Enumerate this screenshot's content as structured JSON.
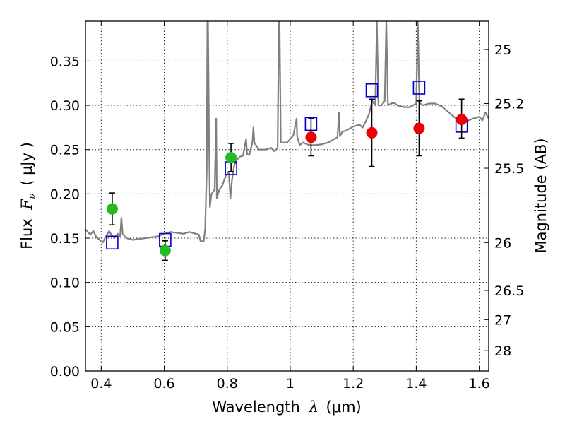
{
  "chart_data": {
    "type": "scatter",
    "xlabel": "Wavelength",
    "xlabel_symbol": "λ",
    "xlabel_unit": "(μm)",
    "ylabel": "Flux",
    "ylabel_symbol": "F",
    "ylabel_subscript": "ν",
    "ylabel_unit": "( μJy )",
    "y2label": "Magnitude (AB)",
    "xlim": [
      0.35,
      1.63
    ],
    "ylim": [
      0.0,
      0.395
    ],
    "grid": true,
    "x_ticks": [
      {
        "value": 0.4,
        "label": "0.4"
      },
      {
        "value": 0.6,
        "label": "0.6"
      },
      {
        "value": 0.8,
        "label": "0.8"
      },
      {
        "value": 1.0,
        "label": "1"
      },
      {
        "value": 1.2,
        "label": "1.2"
      },
      {
        "value": 1.4,
        "label": "1.4"
      },
      {
        "value": 1.6,
        "label": "1.6"
      }
    ],
    "y_ticks": [
      {
        "value": 0.0,
        "label": "0.00"
      },
      {
        "value": 0.05,
        "label": "0.05"
      },
      {
        "value": 0.1,
        "label": "0.10"
      },
      {
        "value": 0.15,
        "label": "0.15"
      },
      {
        "value": 0.2,
        "label": "0.20"
      },
      {
        "value": 0.25,
        "label": "0.25"
      },
      {
        "value": 0.3,
        "label": "0.30"
      },
      {
        "value": 0.35,
        "label": "0.35"
      }
    ],
    "y2_ticks": [
      {
        "label": "25",
        "flux": 0.363
      },
      {
        "label": "25.2",
        "flux": 0.302
      },
      {
        "label": "25.5",
        "flux": 0.229
      },
      {
        "label": "26",
        "flux": 0.145
      },
      {
        "label": "26.5",
        "flux": 0.091
      },
      {
        "label": "27",
        "flux": 0.058
      },
      {
        "label": "28",
        "flux": 0.023
      }
    ],
    "series": [
      {
        "kind": "line",
        "color": "#808080",
        "points": [
          [
            0.35,
            0.16
          ],
          [
            0.365,
            0.154
          ],
          [
            0.375,
            0.158
          ],
          [
            0.385,
            0.151
          ],
          [
            0.395,
            0.148
          ],
          [
            0.405,
            0.145
          ],
          [
            0.415,
            0.152
          ],
          [
            0.425,
            0.158
          ],
          [
            0.432,
            0.154
          ],
          [
            0.442,
            0.15
          ],
          [
            0.452,
            0.155
          ],
          [
            0.46,
            0.152
          ],
          [
            0.464,
            0.173
          ],
          [
            0.468,
            0.155
          ],
          [
            0.48,
            0.15
          ],
          [
            0.5,
            0.148
          ],
          [
            0.52,
            0.149
          ],
          [
            0.54,
            0.15
          ],
          [
            0.56,
            0.151
          ],
          [
            0.58,
            0.152
          ],
          [
            0.6,
            0.155
          ],
          [
            0.62,
            0.157
          ],
          [
            0.64,
            0.156
          ],
          [
            0.66,
            0.155
          ],
          [
            0.68,
            0.157
          ],
          [
            0.7,
            0.155
          ],
          [
            0.71,
            0.154
          ],
          [
            0.715,
            0.147
          ],
          [
            0.725,
            0.146
          ],
          [
            0.73,
            0.16
          ],
          [
            0.735,
            0.225
          ],
          [
            0.737,
            0.395
          ],
          [
            0.739,
            0.395
          ],
          [
            0.742,
            0.27
          ],
          [
            0.745,
            0.185
          ],
          [
            0.75,
            0.2
          ],
          [
            0.76,
            0.205
          ],
          [
            0.765,
            0.285
          ],
          [
            0.767,
            0.195
          ],
          [
            0.775,
            0.205
          ],
          [
            0.785,
            0.21
          ],
          [
            0.795,
            0.22
          ],
          [
            0.805,
            0.225
          ],
          [
            0.81,
            0.195
          ],
          [
            0.815,
            0.215
          ],
          [
            0.822,
            0.232
          ],
          [
            0.83,
            0.238
          ],
          [
            0.84,
            0.242
          ],
          [
            0.85,
            0.243
          ],
          [
            0.86,
            0.262
          ],
          [
            0.863,
            0.245
          ],
          [
            0.87,
            0.244
          ],
          [
            0.88,
            0.258
          ],
          [
            0.883,
            0.275
          ],
          [
            0.886,
            0.258
          ],
          [
            0.9,
            0.25
          ],
          [
            0.92,
            0.25
          ],
          [
            0.94,
            0.252
          ],
          [
            0.95,
            0.248
          ],
          [
            0.96,
            0.252
          ],
          [
            0.964,
            0.395
          ],
          [
            0.966,
            0.395
          ],
          [
            0.97,
            0.258
          ],
          [
            0.99,
            0.258
          ],
          [
            1.0,
            0.262
          ],
          [
            1.01,
            0.266
          ],
          [
            1.02,
            0.285
          ],
          [
            1.022,
            0.265
          ],
          [
            1.03,
            0.255
          ],
          [
            1.04,
            0.258
          ],
          [
            1.06,
            0.255
          ],
          [
            1.08,
            0.255
          ],
          [
            1.1,
            0.256
          ],
          [
            1.12,
            0.258
          ],
          [
            1.14,
            0.262
          ],
          [
            1.15,
            0.264
          ],
          [
            1.155,
            0.292
          ],
          [
            1.158,
            0.265
          ],
          [
            1.165,
            0.27
          ],
          [
            1.18,
            0.272
          ],
          [
            1.2,
            0.276
          ],
          [
            1.22,
            0.278
          ],
          [
            1.23,
            0.275
          ],
          [
            1.24,
            0.282
          ],
          [
            1.25,
            0.29
          ],
          [
            1.26,
            0.305
          ],
          [
            1.27,
            0.3
          ],
          [
            1.275,
            0.395
          ],
          [
            1.28,
            0.3
          ],
          [
            1.29,
            0.3
          ],
          [
            1.3,
            0.305
          ],
          [
            1.305,
            0.395
          ],
          [
            1.31,
            0.3
          ],
          [
            1.32,
            0.302
          ],
          [
            1.33,
            0.303
          ],
          [
            1.34,
            0.3
          ],
          [
            1.36,
            0.298
          ],
          [
            1.38,
            0.298
          ],
          [
            1.39,
            0.3
          ],
          [
            1.4,
            0.302
          ],
          [
            1.405,
            0.395
          ],
          [
            1.41,
            0.303
          ],
          [
            1.42,
            0.3
          ],
          [
            1.44,
            0.302
          ],
          [
            1.46,
            0.302
          ],
          [
            1.48,
            0.299
          ],
          [
            1.5,
            0.293
          ],
          [
            1.52,
            0.287
          ],
          [
            1.54,
            0.281
          ],
          [
            1.56,
            0.282
          ],
          [
            1.58,
            0.285
          ],
          [
            1.6,
            0.287
          ],
          [
            1.61,
            0.283
          ],
          [
            1.62,
            0.292
          ],
          [
            1.63,
            0.285
          ]
        ]
      },
      {
        "kind": "open-square",
        "color": "#0000cc",
        "points": [
          [
            0.435,
            0.145
          ],
          [
            0.603,
            0.148
          ],
          [
            0.812,
            0.229
          ],
          [
            1.066,
            0.279
          ],
          [
            1.259,
            0.317
          ],
          [
            1.409,
            0.32
          ],
          [
            1.544,
            0.277
          ]
        ]
      },
      {
        "kind": "filled-circle",
        "color": "#22bb22",
        "points": [
          {
            "x": 0.435,
            "y": 0.183,
            "ylo": 0.165,
            "yhi": 0.201
          },
          {
            "x": 0.603,
            "y": 0.136,
            "ylo": 0.125,
            "yhi": 0.147
          },
          {
            "x": 0.812,
            "y": 0.241,
            "ylo": 0.225,
            "yhi": 0.257
          }
        ]
      },
      {
        "kind": "filled-circle",
        "color": "#ee0000",
        "points": [
          {
            "x": 1.066,
            "y": 0.264,
            "ylo": 0.243,
            "yhi": 0.285
          },
          {
            "x": 1.259,
            "y": 0.269,
            "ylo": 0.231,
            "yhi": 0.307
          },
          {
            "x": 1.409,
            "y": 0.274,
            "ylo": 0.243,
            "yhi": 0.305
          },
          {
            "x": 1.544,
            "y": 0.284,
            "ylo": 0.263,
            "yhi": 0.307
          }
        ]
      }
    ]
  }
}
